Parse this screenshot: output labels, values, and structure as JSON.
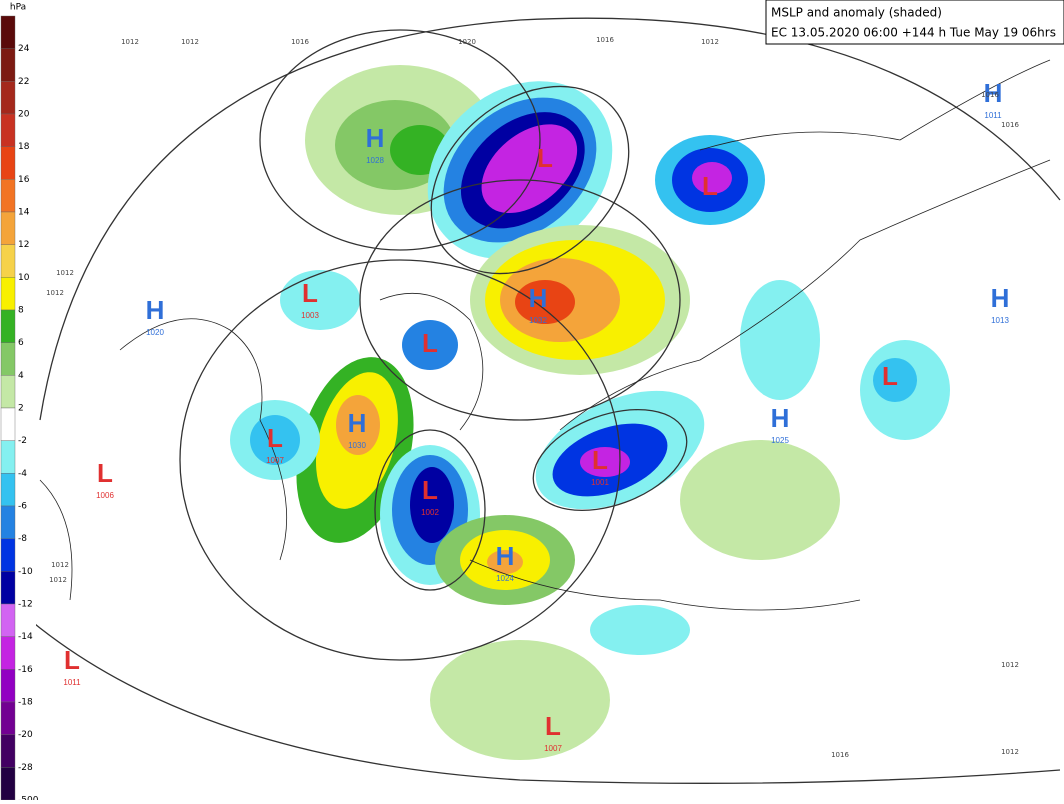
{
  "title_box": {
    "line1": "MSLP and anomaly (shaded)",
    "line2": "EC 13.05.2020 06:00 +144 h Tue May 19 06hrs"
  },
  "colorbar": {
    "unit": "hPa",
    "items": [
      {
        "label": "24",
        "color": "#5a0a0a"
      },
      {
        "label": "22",
        "color": "#7c1a12"
      },
      {
        "label": "20",
        "color": "#a4281c"
      },
      {
        "label": "18",
        "color": "#c83222"
      },
      {
        "label": "16",
        "color": "#e84414"
      },
      {
        "label": "14",
        "color": "#f27424"
      },
      {
        "label": "12",
        "color": "#f4a43a"
      },
      {
        "label": "10",
        "color": "#f6d24a"
      },
      {
        "label": "8",
        "color": "#f8f000"
      },
      {
        "label": "6",
        "color": "#34b224"
      },
      {
        "label": "4",
        "color": "#84c866"
      },
      {
        "label": "2",
        "color": "#c4e8a6"
      },
      {
        "label": "-2",
        "color": "#ffffff"
      },
      {
        "label": "-4",
        "color": "#84f0f0"
      },
      {
        "label": "-6",
        "color": "#34c2f0"
      },
      {
        "label": "-8",
        "color": "#2482e2"
      },
      {
        "label": "-10",
        "color": "#0034e2"
      },
      {
        "label": "-12",
        "color": "#0000a2"
      },
      {
        "label": "-14",
        "color": "#d264f2"
      },
      {
        "label": "-16",
        "color": "#c424e2"
      },
      {
        "label": "-18",
        "color": "#9200c2"
      },
      {
        "label": "-20",
        "color": "#720092"
      },
      {
        "label": "-28",
        "color": "#420062"
      },
      {
        "label": "-500",
        "color": "#220042"
      }
    ]
  },
  "systems": [
    {
      "symbol": "H",
      "pressure": "1028"
    },
    {
      "symbol": "L",
      "pressure": null
    },
    {
      "symbol": "L",
      "pressure": null
    },
    {
      "symbol": "H",
      "pressure": "1011"
    },
    {
      "symbol": "H",
      "pressure": "1020"
    },
    {
      "symbol": "L",
      "pressure": "1003"
    },
    {
      "symbol": "H",
      "pressure": "1032"
    },
    {
      "symbol": "L",
      "pressure": null
    },
    {
      "symbol": "H",
      "pressure": "1013"
    },
    {
      "symbol": "L",
      "pressure": null
    },
    {
      "symbol": "H",
      "pressure": "1025"
    },
    {
      "symbol": "L",
      "pressure": "1007"
    },
    {
      "symbol": "H",
      "pressure": "1030"
    },
    {
      "symbol": "L",
      "pressure": "1001"
    },
    {
      "symbol": "L",
      "pressure": "1002"
    },
    {
      "symbol": "L",
      "pressure": "1006"
    },
    {
      "symbol": "H",
      "pressure": "1024"
    },
    {
      "symbol": "L",
      "pressure": "1011"
    },
    {
      "symbol": "L",
      "pressure": "1007"
    }
  ],
  "isobar_labels": [
    "1012",
    "1012",
    "1016",
    "1020",
    "1016",
    "1012",
    "1012",
    "1012",
    "1012",
    "1012",
    "1016",
    "1016",
    "1016",
    "1012",
    "1012"
  ]
}
